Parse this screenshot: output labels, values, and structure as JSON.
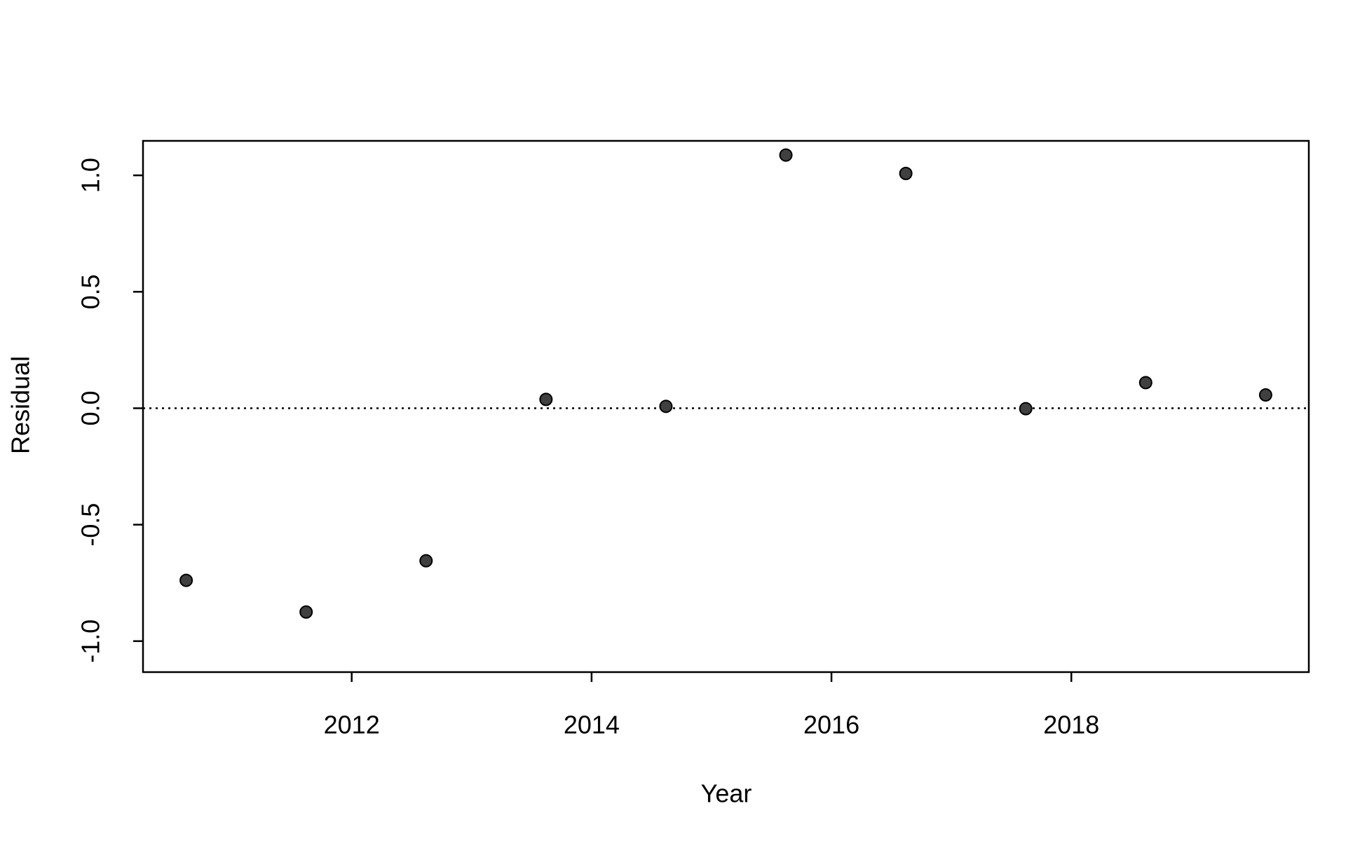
{
  "chart_data": {
    "type": "scatter",
    "x_label": "Year",
    "y_label": "Residual",
    "x": [
      2010.62,
      2011.62,
      2012.62,
      2013.62,
      2014.62,
      2015.62,
      2016.62,
      2017.62,
      2018.62,
      2019.62
    ],
    "series": [
      {
        "color": "#404040",
        "values": [
          -0.739,
          -0.875,
          -0.655,
          0.038,
          0.008,
          1.087,
          1.008,
          -0.002,
          0.11,
          0.057
        ]
      }
    ],
    "xlim": [
      2010.26,
      2019.98
    ],
    "xticks": [
      2012,
      2014,
      2016,
      2018
    ],
    "ylim": [
      -1.133,
      1.148
    ],
    "yticks": [
      -1.0,
      -0.5,
      0.0,
      0.5,
      1.0
    ],
    "yticks_labels": null,
    "reference_line": 0
  }
}
